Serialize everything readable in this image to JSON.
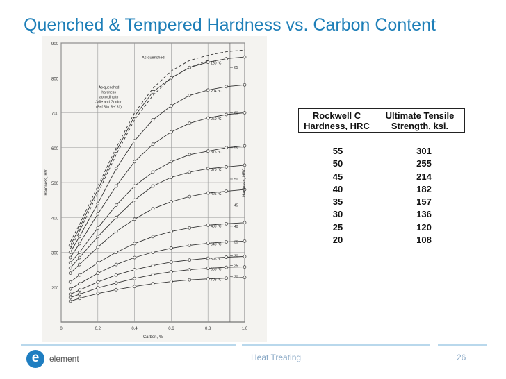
{
  "slide": {
    "title": "Quenched & Tempered Hardness vs. Carbon Content",
    "footer_text": "Heat Treating",
    "page_number": "26",
    "logo_text": "element",
    "logo_letter": "e"
  },
  "colors": {
    "title": "#1e7fb8",
    "logo": "#1f7ec1",
    "footer": "#8aa9c6",
    "rule": "#b9d8ec"
  },
  "table": {
    "headers": [
      "Rockwell C Hardness, HRC",
      "Ultimate Tensile Strength, ksi."
    ],
    "rows": [
      [
        "55",
        "301"
      ],
      [
        "50",
        "255"
      ],
      [
        "45",
        "214"
      ],
      [
        "40",
        "182"
      ],
      [
        "35",
        "157"
      ],
      [
        "30",
        "136"
      ],
      [
        "25",
        "120"
      ],
      [
        "20",
        "108"
      ]
    ]
  },
  "chart_data": {
    "type": "line",
    "title": "",
    "xlabel": "Carbon, %",
    "ylabel": "Hardness, HV",
    "y2label": "Hardness, HRC",
    "xlim": [
      0,
      1.0
    ],
    "ylim": [
      100,
      900
    ],
    "x_ticks": [
      "0",
      "0.2",
      "0.4",
      "0.6",
      "0.8",
      "1.0"
    ],
    "y_ticks": [
      "200",
      "300",
      "400",
      "500",
      "600",
      "700",
      "800",
      "900"
    ],
    "y2_ticks": [
      "20",
      "25",
      "30",
      "35",
      "40",
      "45",
      "50",
      "55",
      "60",
      "65"
    ],
    "annotations": [
      "As-quenched",
      "As-quenched hardness according to Jaffe and Gordon (Ref 5 in Ref 31)"
    ],
    "series": [
      {
        "name": "As-quenched",
        "style": "dashed",
        "x": [
          0.05,
          0.1,
          0.2,
          0.3,
          0.4,
          0.5,
          0.6,
          0.7,
          0.8,
          0.9,
          1.0
        ],
        "y": [
          330,
          380,
          490,
          600,
          700,
          770,
          820,
          850,
          865,
          875,
          880
        ]
      },
      {
        "name": "As-quenched hardness according to Jaffe and Gordon (Ref 5 in Ref 31)",
        "style": "dashed",
        "x": [
          0.05,
          0.1,
          0.2,
          0.3,
          0.4,
          0.5,
          0.6,
          0.7,
          0.8
        ],
        "y": [
          310,
          360,
          470,
          580,
          680,
          750,
          800,
          830,
          850
        ]
      },
      {
        "name": "150 °C",
        "x": [
          0.05,
          0.1,
          0.2,
          0.3,
          0.4,
          0.5,
          0.6,
          0.7,
          0.8,
          0.9,
          1.0
        ],
        "y": [
          320,
          370,
          480,
          590,
          690,
          760,
          800,
          830,
          845,
          855,
          860
        ]
      },
      {
        "name": "204 °C",
        "x": [
          0.05,
          0.1,
          0.2,
          0.3,
          0.4,
          0.5,
          0.6,
          0.7,
          0.8,
          0.9,
          1.0
        ],
        "y": [
          300,
          345,
          440,
          540,
          620,
          680,
          720,
          750,
          765,
          775,
          780
        ]
      },
      {
        "name": "260 °C",
        "x": [
          0.05,
          0.1,
          0.2,
          0.3,
          0.4,
          0.5,
          0.6,
          0.7,
          0.8,
          0.9,
          1.0
        ],
        "y": [
          285,
          325,
          410,
          490,
          560,
          610,
          645,
          670,
          685,
          695,
          700
        ]
      },
      {
        "name": "315 °C",
        "x": [
          0.05,
          0.1,
          0.2,
          0.3,
          0.4,
          0.5,
          0.6,
          0.7,
          0.8,
          0.9,
          1.0
        ],
        "y": [
          270,
          300,
          370,
          435,
          490,
          530,
          560,
          580,
          590,
          600,
          605
        ]
      },
      {
        "name": "370 °C",
        "x": [
          0.05,
          0.1,
          0.2,
          0.3,
          0.4,
          0.5,
          0.6,
          0.7,
          0.8,
          0.9,
          1.0
        ],
        "y": [
          255,
          285,
          345,
          400,
          450,
          490,
          515,
          530,
          540,
          545,
          550
        ]
      },
      {
        "name": "425 °C",
        "x": [
          0.05,
          0.1,
          0.2,
          0.3,
          0.4,
          0.5,
          0.6,
          0.7,
          0.8,
          0.9,
          1.0
        ],
        "y": [
          240,
          265,
          315,
          360,
          395,
          425,
          445,
          460,
          470,
          475,
          480
        ]
      },
      {
        "name": "480 °C",
        "x": [
          0.05,
          0.1,
          0.2,
          0.3,
          0.4,
          0.5,
          0.6,
          0.7,
          0.8,
          0.9,
          1.0
        ],
        "y": [
          215,
          235,
          270,
          300,
          325,
          345,
          360,
          370,
          378,
          382,
          385
        ]
      },
      {
        "name": "540 °C",
        "x": [
          0.05,
          0.1,
          0.2,
          0.3,
          0.4,
          0.5,
          0.6,
          0.7,
          0.8,
          0.9,
          1.0
        ],
        "y": [
          195,
          210,
          240,
          265,
          285,
          300,
          312,
          320,
          326,
          330,
          332
        ]
      },
      {
        "name": "595 °C",
        "x": [
          0.05,
          0.1,
          0.2,
          0.3,
          0.4,
          0.5,
          0.6,
          0.7,
          0.8,
          0.9,
          1.0
        ],
        "y": [
          180,
          192,
          215,
          235,
          250,
          262,
          272,
          278,
          283,
          286,
          288
        ]
      },
      {
        "name": "650 °C",
        "x": [
          0.05,
          0.1,
          0.2,
          0.3,
          0.4,
          0.5,
          0.6,
          0.7,
          0.8,
          0.9,
          1.0
        ],
        "y": [
          170,
          180,
          198,
          212,
          225,
          236,
          244,
          250,
          254,
          257,
          258
        ]
      },
      {
        "name": "705 °C",
        "x": [
          0.05,
          0.1,
          0.2,
          0.3,
          0.4,
          0.5,
          0.6,
          0.7,
          0.8,
          0.9,
          1.0
        ],
        "y": [
          160,
          168,
          182,
          193,
          202,
          210,
          216,
          221,
          224,
          226,
          228
        ]
      }
    ]
  }
}
